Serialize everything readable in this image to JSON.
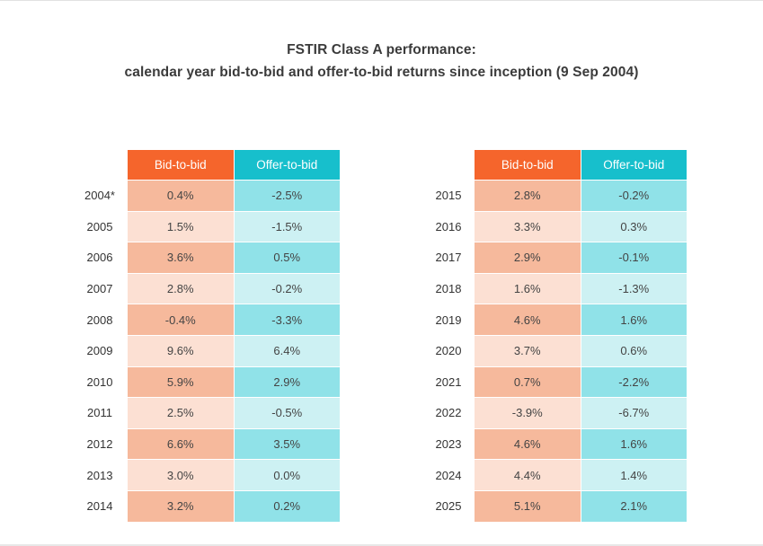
{
  "chart_data": {
    "type": "table",
    "title": "FSTIR Class A performance:",
    "subtitle": "calendar year bid-to-bid and offer-to-bid returns since inception (9 Sep 2004)",
    "columns": [
      "Bid-to-bid",
      "Offer-to-bid"
    ],
    "colors": {
      "bid_header": "#f5652c",
      "offer_header": "#17bfcc",
      "bid_dark": "#f6b99c",
      "bid_light": "#fce0d3",
      "offer_dark": "#90e2e8",
      "offer_light": "#cdf1f3"
    },
    "tables": [
      {
        "rows": [
          {
            "year": "2004*",
            "bid": "0.4%",
            "offer": "-2.5%"
          },
          {
            "year": "2005",
            "bid": "1.5%",
            "offer": "-1.5%"
          },
          {
            "year": "2006",
            "bid": "3.6%",
            "offer": "0.5%"
          },
          {
            "year": "2007",
            "bid": "2.8%",
            "offer": "-0.2%"
          },
          {
            "year": "2008",
            "bid": "-0.4%",
            "offer": "-3.3%"
          },
          {
            "year": "2009",
            "bid": "9.6%",
            "offer": "6.4%"
          },
          {
            "year": "2010",
            "bid": "5.9%",
            "offer": "2.9%"
          },
          {
            "year": "2011",
            "bid": "2.5%",
            "offer": "-0.5%"
          },
          {
            "year": "2012",
            "bid": "6.6%",
            "offer": "3.5%"
          },
          {
            "year": "2013",
            "bid": "3.0%",
            "offer": "0.0%"
          },
          {
            "year": "2014",
            "bid": "3.2%",
            "offer": "0.2%"
          }
        ]
      },
      {
        "rows": [
          {
            "year": "2015",
            "bid": "2.8%",
            "offer": "-0.2%"
          },
          {
            "year": "2016",
            "bid": "3.3%",
            "offer": "0.3%"
          },
          {
            "year": "2017",
            "bid": "2.9%",
            "offer": "-0.1%"
          },
          {
            "year": "2018",
            "bid": "1.6%",
            "offer": "-1.3%"
          },
          {
            "year": "2019",
            "bid": "4.6%",
            "offer": "1.6%"
          },
          {
            "year": "2020",
            "bid": "3.7%",
            "offer": "0.6%"
          },
          {
            "year": "2021",
            "bid": "0.7%",
            "offer": "-2.2%"
          },
          {
            "year": "2022",
            "bid": "-3.9%",
            "offer": "-6.7%"
          },
          {
            "year": "2023",
            "bid": "4.6%",
            "offer": "1.6%"
          },
          {
            "year": "2024",
            "bid": "4.4%",
            "offer": "1.4%"
          },
          {
            "year": "2025",
            "bid": "5.1%",
            "offer": "2.1%"
          }
        ]
      }
    ]
  }
}
